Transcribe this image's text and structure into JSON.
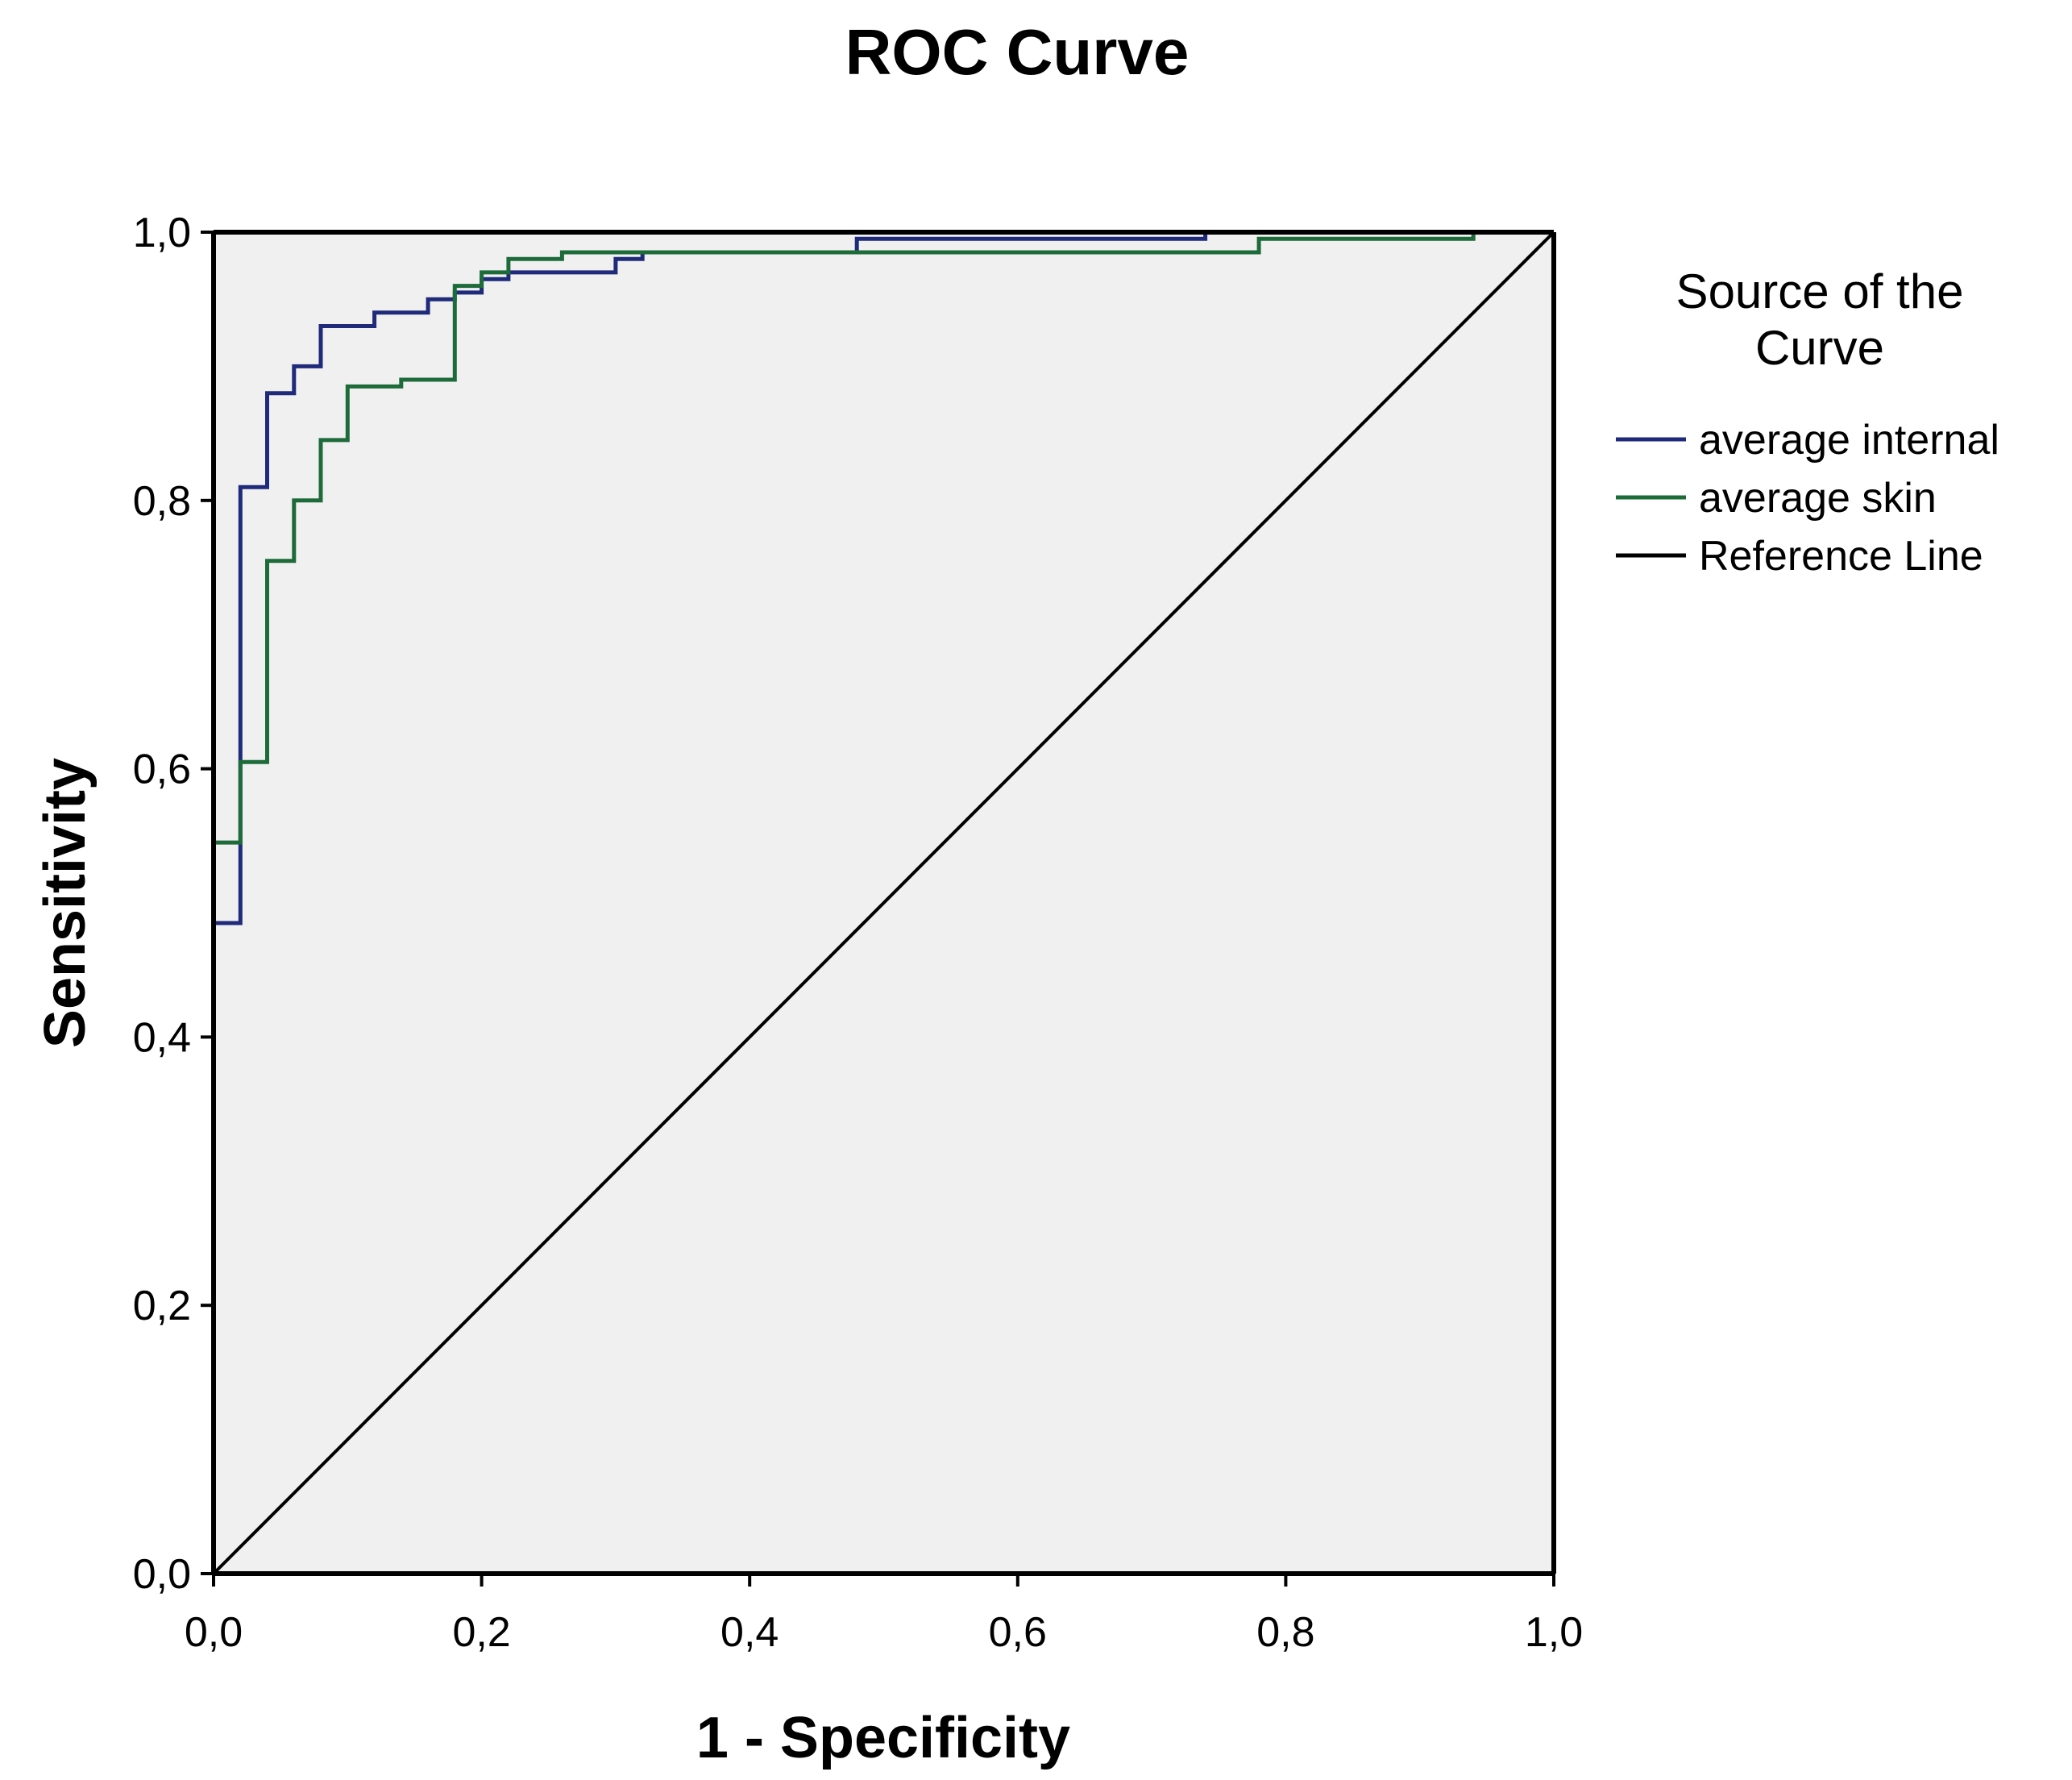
{
  "chart_data": {
    "type": "line",
    "title": "ROC Curve",
    "xlabel": "1 - Specificity",
    "ylabel": "Sensitivity",
    "xlim": [
      0,
      1
    ],
    "ylim": [
      0,
      1
    ],
    "x_ticks": [
      "0,0",
      "0,2",
      "0,4",
      "0,6",
      "0,8",
      "1,0"
    ],
    "y_ticks": [
      "0,0",
      "0,2",
      "0,4",
      "0,6",
      "0,8",
      "1,0"
    ],
    "grid": false,
    "legend": {
      "title_line1": "Source of the",
      "title_line2": "Curve",
      "position": "right"
    },
    "colors": {
      "plot_background": "#f0f0f0",
      "average_internal": "#1f2a7a",
      "average_skin": "#1e6b3a",
      "reference": "#000000",
      "axis": "#000000"
    },
    "series": [
      {
        "name": "average internal",
        "color": "#1f2a7a",
        "x": [
          0.0,
          0.0,
          0.02,
          0.02,
          0.04,
          0.04,
          0.06,
          0.06,
          0.08,
          0.08,
          0.12,
          0.12,
          0.16,
          0.16,
          0.18,
          0.18,
          0.2,
          0.2,
          0.22,
          0.22,
          0.3,
          0.3,
          0.32,
          0.32,
          0.48,
          0.48,
          0.74,
          0.74,
          1.0
        ],
        "y": [
          0.0,
          0.485,
          0.485,
          0.81,
          0.81,
          0.88,
          0.88,
          0.9,
          0.9,
          0.93,
          0.93,
          0.94,
          0.94,
          0.95,
          0.95,
          0.955,
          0.955,
          0.965,
          0.965,
          0.97,
          0.97,
          0.98,
          0.98,
          0.985,
          0.985,
          0.995,
          0.995,
          1.0,
          1.0
        ]
      },
      {
        "name": "average skin",
        "color": "#1e6b3a",
        "x": [
          0.0,
          0.0,
          0.02,
          0.02,
          0.04,
          0.04,
          0.06,
          0.06,
          0.08,
          0.08,
          0.1,
          0.1,
          0.14,
          0.14,
          0.18,
          0.18,
          0.2,
          0.2,
          0.22,
          0.22,
          0.26,
          0.26,
          0.78,
          0.78,
          0.94,
          0.94,
          1.0
        ],
        "y": [
          0.0,
          0.545,
          0.545,
          0.605,
          0.605,
          0.755,
          0.755,
          0.8,
          0.8,
          0.845,
          0.845,
          0.885,
          0.885,
          0.89,
          0.89,
          0.96,
          0.96,
          0.97,
          0.97,
          0.98,
          0.98,
          0.985,
          0.985,
          0.995,
          0.995,
          1.0,
          1.0
        ]
      },
      {
        "name": "Reference Line",
        "color": "#000000",
        "x": [
          0.0,
          1.0
        ],
        "y": [
          0.0,
          1.0
        ]
      }
    ]
  }
}
